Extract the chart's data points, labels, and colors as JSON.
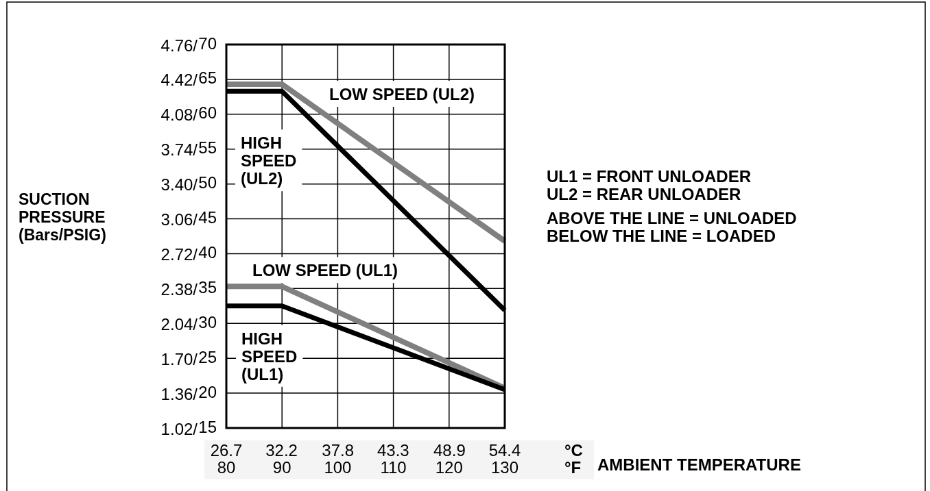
{
  "chart_data": {
    "type": "line",
    "xlabel": "°F",
    "x2label": "°C",
    "ylabel": "SUCTION\nPRESSURE\n(Bars/PSIG)",
    "xlim": [
      80,
      130
    ],
    "xticks": [
      80,
      90,
      100,
      110,
      120,
      130
    ],
    "x2lim": [
      26.7,
      54.4
    ],
    "x2ticks": [
      26.7,
      32.2,
      37.8,
      43.3,
      48.9,
      54.4
    ],
    "ylim": [
      1.02,
      4.76
    ],
    "yticks": [
      {
        "value": 1.02,
        "label": "1.02/"
      },
      {
        "value": 1.36,
        "label": "1.36/"
      },
      {
        "value": 1.7,
        "label": "1.70/"
      },
      {
        "value": 2.04,
        "label": "2.04/"
      },
      {
        "value": 2.38,
        "label": "2.38/"
      },
      {
        "value": 2.72,
        "label": "2.72/"
      },
      {
        "value": 3.06,
        "label": "3.06/"
      },
      {
        "value": 3.4,
        "label": "3.40/"
      },
      {
        "value": 3.74,
        "label": "3.74/"
      },
      {
        "value": 4.08,
        "label": "4.08/"
      },
      {
        "value": 4.42,
        "label": "4.42/"
      },
      {
        "value": 4.76,
        "label": "4.76/"
      }
    ],
    "y2lim": [
      15,
      70
    ],
    "y2ticks": [
      15,
      20,
      25,
      30,
      35,
      40,
      45,
      50,
      55,
      60,
      65,
      70
    ],
    "grid": true,
    "series": [
      {
        "name": "LOW SPEED (UL2)",
        "color": "#808080",
        "axis": "y2",
        "x": [
          80,
          90,
          130
        ],
        "values": [
          64.3,
          64.3,
          41.8
        ]
      },
      {
        "name": "HIGH SPEED (UL2)",
        "color": "#000000",
        "axis": "y2",
        "x": [
          80,
          90,
          130
        ],
        "values": [
          63.3,
          63.3,
          31.9
        ]
      },
      {
        "name": "LOW SPEED (UL1)",
        "color": "#808080",
        "axis": "y2",
        "x": [
          80,
          90,
          130
        ],
        "values": [
          35.3,
          35.3,
          20.7
        ]
      },
      {
        "name": "HIGH SPEED (UL1)",
        "color": "#000000",
        "axis": "y2",
        "x": [
          80,
          90,
          130
        ],
        "values": [
          32.5,
          32.5,
          20.5
        ]
      }
    ],
    "annotations": [
      "UL1 = FRONT UNLOADER",
      "UL2 = REAR UNLOADER",
      "ABOVE THE LINE = UNLOADED",
      "BELOW THE LINE = LOADED",
      "AMBIENT TEMPERATURE"
    ]
  }
}
